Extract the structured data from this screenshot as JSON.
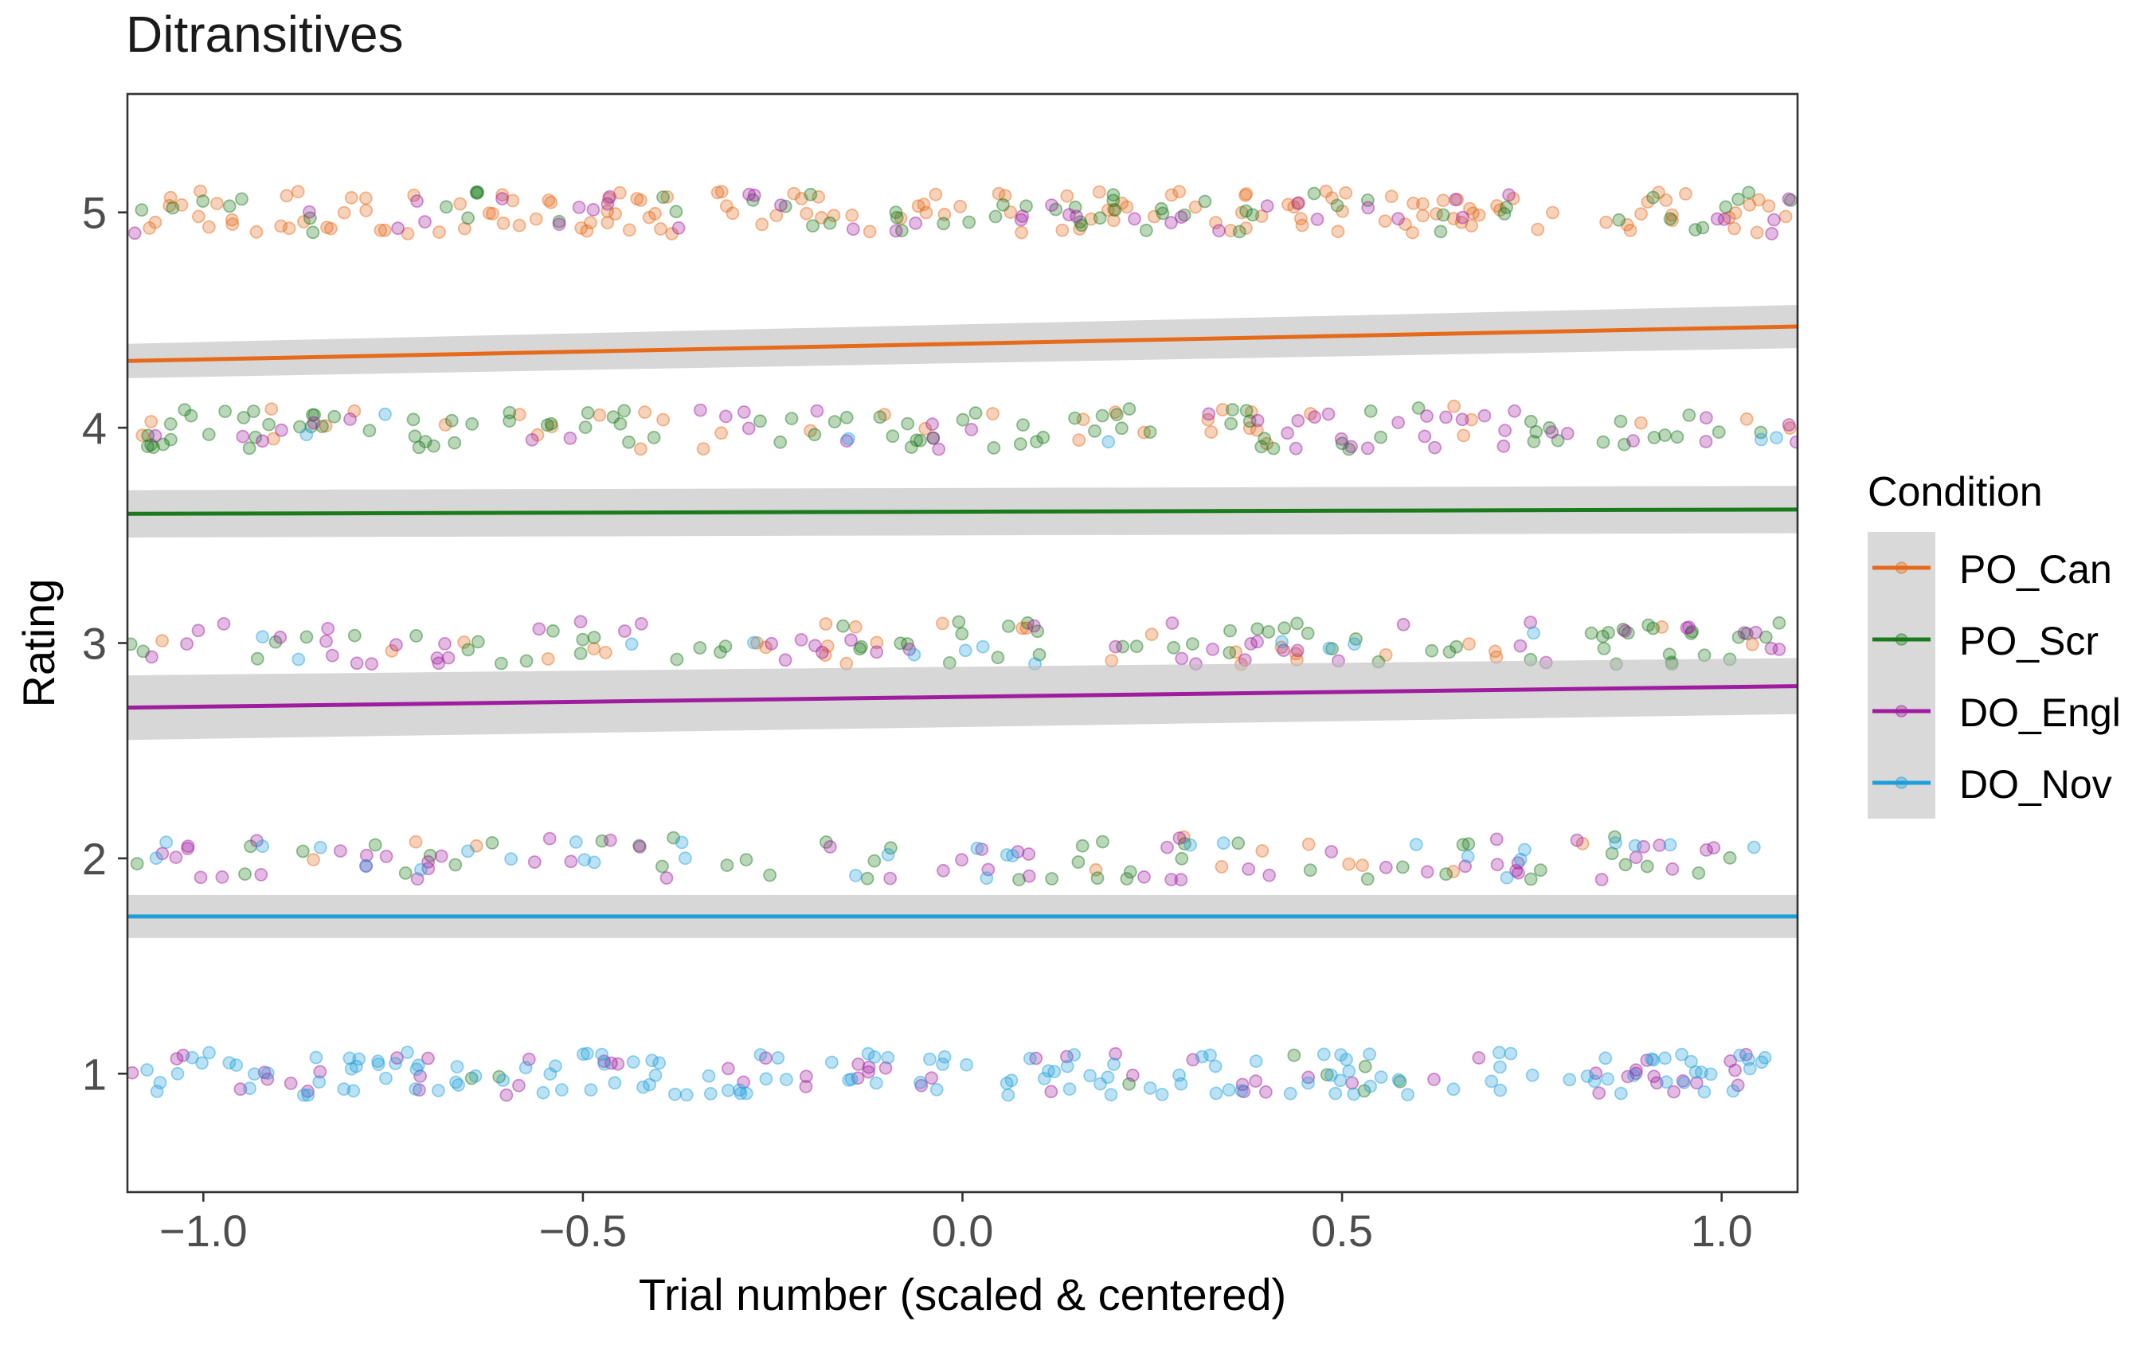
{
  "chart_data": {
    "type": "scatter",
    "title": "Ditransitives",
    "xlabel": "Trial number (scaled & centered)",
    "ylabel": "Rating",
    "xlim": [
      -1.1,
      1.1
    ],
    "ylim": [
      0.45,
      5.55
    ],
    "x_ticks": [
      -1.0,
      -0.5,
      0.0,
      0.5,
      1.0
    ],
    "x_tick_labels": [
      "−1.0",
      "−0.5",
      "0.0",
      "0.5",
      "1.0"
    ],
    "y_ticks": [
      1,
      2,
      3,
      4,
      5
    ],
    "y_tick_labels": [
      "1",
      "2",
      "3",
      "4",
      "5"
    ],
    "grid": false,
    "legend": {
      "title": "Condition",
      "position": "right"
    },
    "series": [
      {
        "name": "PO_Can",
        "color": "#E66A1A",
        "fit": {
          "x": [
            -1.1,
            1.1
          ],
          "y": [
            4.31,
            4.47
          ],
          "ci_low": [
            4.23,
            4.37
          ],
          "ci_high": [
            4.39,
            4.57
          ]
        },
        "points_by_rating": {
          "5": 150,
          "4": 38,
          "3": 30,
          "2": 12,
          "1": 0
        }
      },
      {
        "name": "PO_Scr",
        "color": "#1B7A1B",
        "fit": {
          "x": [
            -1.1,
            1.1
          ],
          "y": [
            3.6,
            3.62
          ],
          "ci_low": [
            3.49,
            3.51
          ],
          "ci_high": [
            3.71,
            3.73
          ]
        },
        "points_by_rating": {
          "5": 60,
          "4": 95,
          "3": 70,
          "2": 45,
          "1": 8
        }
      },
      {
        "name": "DO_Engl",
        "color": "#A01C9F",
        "fit": {
          "x": [
            -1.1,
            1.1
          ],
          "y": [
            2.7,
            2.8
          ],
          "ci_low": [
            2.55,
            2.67
          ],
          "ci_high": [
            2.85,
            2.93
          ]
        },
        "points_by_rating": {
          "5": 40,
          "4": 45,
          "3": 50,
          "2": 55,
          "1": 60
        }
      },
      {
        "name": "DO_Nov",
        "color": "#1E9FD9",
        "fit": {
          "x": [
            -1.1,
            1.1
          ],
          "y": [
            1.73,
            1.73
          ],
          "ci_low": [
            1.63,
            1.63
          ],
          "ci_high": [
            1.83,
            1.83
          ]
        },
        "points_by_rating": {
          "5": 0,
          "4": 6,
          "3": 12,
          "2": 30,
          "1": 150
        }
      }
    ],
    "jitter": {
      "x_spread": 1.1,
      "y_spread": 0.1
    },
    "point_opacity": 0.3
  }
}
